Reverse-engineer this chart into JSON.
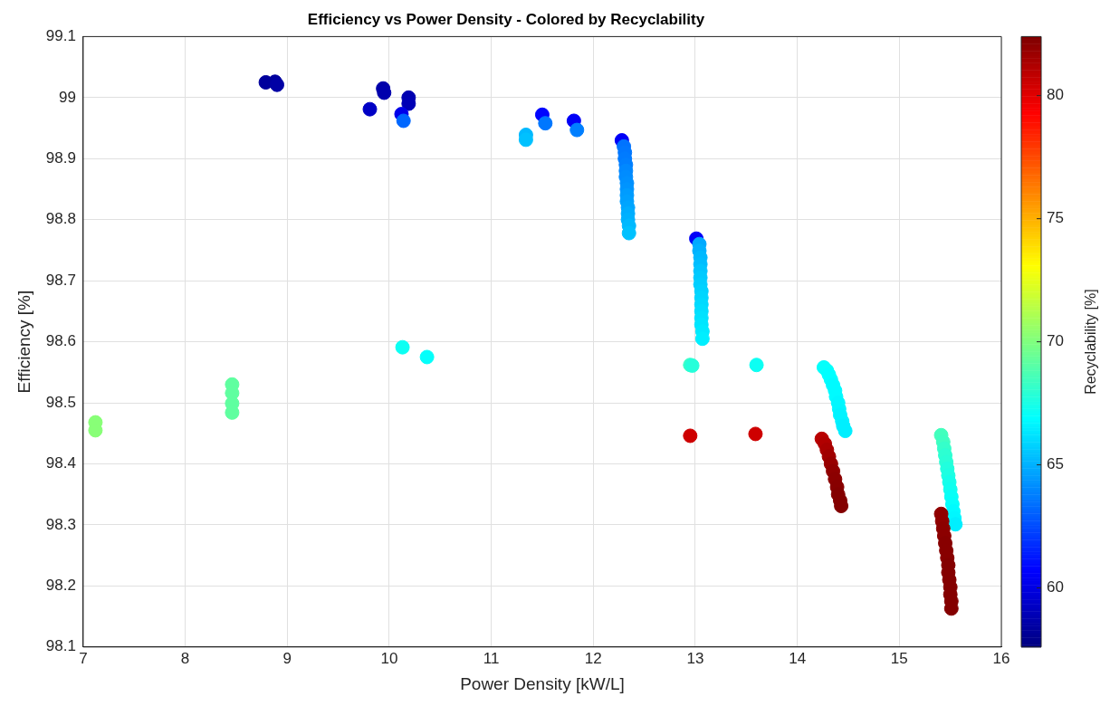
{
  "chart_data": {
    "type": "scatter",
    "title": "Efficiency vs Power Density - Colored by Recyclability",
    "xlabel": "Power Density [kW/L]",
    "ylabel": "Efficiency [%]",
    "clabel": "Recyclability [%]",
    "x": [
      8.79,
      8.88,
      8.9,
      9.94,
      9.95,
      9.81,
      10.19,
      10.19,
      10.12,
      10.14,
      11.34,
      11.34,
      11.5,
      11.53,
      11.81,
      11.84,
      12.28,
      12.3,
      12.31,
      12.31,
      12.32,
      12.32,
      12.32,
      12.33,
      12.33,
      12.33,
      12.33,
      12.34,
      12.34,
      12.34,
      12.35,
      12.35,
      13.01,
      13.04,
      13.04,
      13.05,
      13.05,
      13.05,
      13.05,
      13.05,
      13.06,
      13.06,
      13.06,
      13.06,
      13.06,
      13.06,
      13.07,
      13.07,
      12.95,
      12.97,
      13.6,
      10.13,
      10.37,
      12.95,
      13.59,
      7.12,
      7.12,
      8.46,
      8.46,
      8.46,
      8.46,
      14.26,
      14.29,
      14.31,
      14.33,
      14.35,
      14.37,
      14.38,
      14.4,
      14.41,
      14.42,
      14.44,
      14.45,
      14.47,
      14.24,
      14.27,
      14.29,
      14.31,
      14.33,
      14.35,
      14.37,
      14.39,
      14.4,
      14.42,
      14.43,
      15.41,
      15.43,
      15.44,
      15.45,
      15.46,
      15.47,
      15.48,
      15.49,
      15.5,
      15.51,
      15.52,
      15.53,
      15.54,
      15.55,
      15.41,
      15.42,
      15.43,
      15.44,
      15.45,
      15.46,
      15.47,
      15.48,
      15.48,
      15.49,
      15.5,
      15.5,
      15.51,
      15.51
    ],
    "values": [
      99.025,
      99.026,
      99.021,
      99.015,
      99.008,
      98.981,
      99.0,
      98.99,
      98.973,
      98.962,
      98.939,
      98.931,
      98.972,
      98.958,
      98.962,
      98.947,
      98.93,
      98.92,
      98.91,
      98.9,
      98.89,
      98.88,
      98.87,
      98.86,
      98.85,
      98.84,
      98.83,
      98.82,
      98.81,
      98.8,
      98.79,
      98.778,
      98.769,
      98.76,
      98.749,
      98.738,
      98.727,
      98.716,
      98.705,
      98.694,
      98.683,
      98.672,
      98.661,
      98.65,
      98.639,
      98.628,
      98.617,
      98.605,
      98.562,
      98.561,
      98.562,
      98.591,
      98.575,
      98.446,
      98.449,
      98.468,
      98.455,
      98.53,
      98.516,
      98.499,
      98.484,
      98.558,
      98.553,
      98.546,
      98.538,
      98.529,
      98.52,
      98.51,
      98.5,
      98.49,
      98.48,
      98.47,
      98.462,
      98.454,
      98.441,
      98.433,
      98.423,
      98.412,
      98.4,
      98.388,
      98.375,
      98.362,
      98.35,
      98.34,
      98.331,
      98.447,
      98.436,
      98.425,
      98.414,
      98.403,
      98.392,
      98.381,
      98.37,
      98.358,
      98.346,
      98.334,
      98.322,
      98.311,
      98.301,
      98.318,
      98.306,
      98.294,
      98.282,
      98.27,
      98.258,
      98.246,
      98.234,
      98.222,
      98.21,
      98.198,
      98.186,
      98.175,
      98.163
    ],
    "cvalues": [
      58.3,
      58.3,
      58.5,
      58.6,
      58.7,
      59.3,
      58.8,
      58.9,
      60.2,
      63.2,
      65.2,
      65.4,
      60.8,
      63.6,
      60.5,
      63.8,
      60.5,
      63.5,
      63.6,
      63.7,
      63.8,
      64.0,
      64.1,
      64.2,
      64.3,
      64.5,
      64.6,
      64.7,
      64.9,
      65.0,
      65.2,
      65.4,
      60.5,
      64.8,
      65.0,
      65.2,
      65.3,
      65.5,
      65.6,
      65.7,
      65.8,
      65.9,
      66.0,
      66.1,
      66.2,
      66.3,
      66.4,
      66.5,
      68.2,
      67.8,
      67.2,
      67.2,
      67.0,
      80.5,
      80.5,
      70.2,
      70.2,
      69.2,
      69.2,
      69.2,
      69.2,
      67.0,
      67.0,
      66.9,
      66.9,
      66.8,
      66.8,
      66.8,
      66.7,
      66.7,
      66.6,
      66.6,
      66.5,
      66.5,
      81.0,
      81.2,
      81.4,
      81.6,
      81.8,
      82.0,
      82.1,
      82.2,
      82.3,
      82.3,
      82.3,
      68.5,
      68.4,
      68.2,
      68.0,
      67.9,
      67.7,
      67.6,
      67.4,
      67.3,
      67.1,
      67.0,
      66.8,
      66.7,
      66.5,
      82.0,
      82.0,
      82.1,
      82.1,
      82.2,
      82.2,
      82.2,
      82.3,
      82.3,
      82.3,
      82.3,
      82.3,
      82.3,
      82.3
    ],
    "xlim": [
      7,
      16
    ],
    "xticks": [
      7,
      8,
      9,
      10,
      11,
      12,
      13,
      14,
      15,
      16
    ],
    "ylim": [
      98.1,
      99.1
    ],
    "yticks": [
      98.1,
      98.2,
      98.3,
      98.4,
      98.5,
      98.6,
      98.7,
      98.8,
      98.9,
      99,
      99.1
    ],
    "clim": [
      57.6,
      82.4
    ],
    "cticks": [
      60,
      65,
      70,
      75,
      80
    ],
    "grid": true,
    "marker": "circle"
  }
}
